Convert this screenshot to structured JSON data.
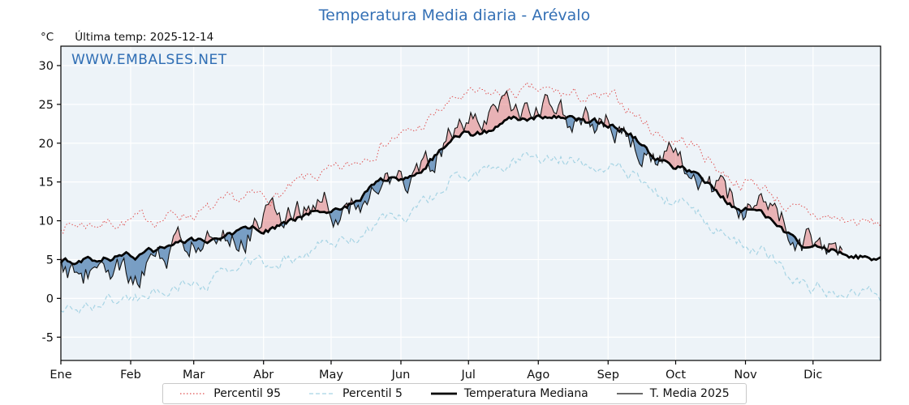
{
  "title": "Temperatura Media diaria - Arévalo",
  "header": {
    "unit": "°C",
    "last_temp": "Última temp: 2025-12-14"
  },
  "watermark": "WWW.EMBALSES.NET",
  "chart_data": {
    "type": "line",
    "title": "Temperatura Media diaria - Arévalo",
    "xlabel": "",
    "ylabel": "°C",
    "ylim": [
      -8,
      32.5
    ],
    "yticks": [
      -5,
      0,
      5,
      10,
      15,
      20,
      25,
      30
    ],
    "categories": [
      "Ene",
      "Feb",
      "Mar",
      "Abr",
      "May",
      "Jun",
      "Jul",
      "Ago",
      "Sep",
      "Oct",
      "Nov",
      "Dic"
    ],
    "month_start_days": [
      0,
      31,
      59,
      90,
      120,
      151,
      181,
      212,
      243,
      273,
      304,
      334
    ],
    "anchor_days": [
      0,
      31,
      59,
      90,
      120,
      151,
      181,
      212,
      243,
      273,
      304,
      334,
      364
    ],
    "days_in_year": 365,
    "last_day_2025": 347,
    "grid_on": true,
    "legend_position": "bottom",
    "plot_bg": "#edf3f8",
    "grid_color": "#ffffff",
    "axis_color": "#000000",
    "fill_above_color": "rgba(226,88,88,0.42)",
    "fill_below_color": "rgba(90,136,182,0.80)",
    "seed": 7,
    "series": [
      {
        "name": "Percentil 95",
        "color": "#e05252",
        "style": "dotted",
        "dash": "1.5 2.5",
        "width": 1.0,
        "noise": 2.2,
        "anchors": [
          9.5,
          10.0,
          11.0,
          13.0,
          16.0,
          21.0,
          26.0,
          26.5,
          25.5,
          20.5,
          15.0,
          10.5,
          9.5
        ]
      },
      {
        "name": "Percentil 5",
        "color": "#a7d4e4",
        "style": "dashed",
        "dash": "5 3",
        "width": 1.2,
        "noise": 2.2,
        "anchors": [
          -1.5,
          0.0,
          2.0,
          4.5,
          7.0,
          10.5,
          16.0,
          18.5,
          17.5,
          12.5,
          7.0,
          1.5,
          0.0
        ]
      },
      {
        "name": "Temperatura Mediana",
        "color": "#000000",
        "style": "solid",
        "dash": "",
        "width": 2.7,
        "noise": 1.1,
        "anchors": [
          4.8,
          5.5,
          7.0,
          9.0,
          11.5,
          15.5,
          21.0,
          23.5,
          22.5,
          17.0,
          11.5,
          6.5,
          5.2
        ]
      },
      {
        "name": "T. Media 2025",
        "color": "#111111",
        "style": "solid",
        "dash": "",
        "width": 1.1,
        "noise": 5.0,
        "end_day": 347,
        "anchors": [
          4.0,
          3.5,
          7.5,
          10.0,
          12.0,
          14.5,
          22.5,
          24.0,
          23.0,
          17.5,
          12.0,
          7.0,
          5.5
        ]
      }
    ]
  }
}
